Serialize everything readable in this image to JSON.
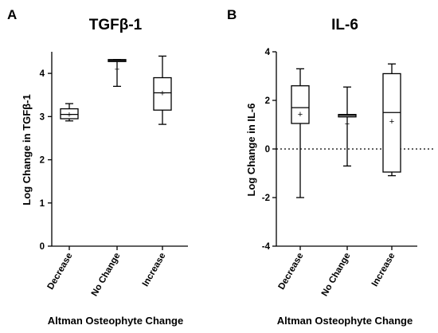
{
  "chart_data": [
    {
      "panel": "A",
      "type": "box",
      "title": "TGFβ-1",
      "ylabel": "Log Change in TGFβ-1",
      "xlabel": "Altman Osteophyte Change",
      "ylim": [
        0,
        4.5
      ],
      "yticks": [
        0,
        1,
        2,
        3,
        4
      ],
      "categories": [
        "Decrease",
        "No Change",
        "Increase"
      ],
      "series": [
        {
          "category": "Decrease",
          "min": 2.9,
          "q1": 2.95,
          "median": 3.05,
          "q3": 3.18,
          "max": 3.3,
          "mean": 3.05
        },
        {
          "category": "No Change",
          "min": 3.7,
          "q1": 4.28,
          "median": 4.3,
          "q3": 4.32,
          "max": 4.32,
          "mean": 4.1
        },
        {
          "category": "Increase",
          "min": 2.82,
          "q1": 3.15,
          "median": 3.55,
          "q3": 3.9,
          "max": 4.4,
          "mean": 3.55
        }
      ]
    },
    {
      "panel": "B",
      "type": "box",
      "title": "IL-6",
      "ylabel": "Log Change in IL-6",
      "xlabel": "Altman Osteophyte Change",
      "ylim": [
        -4,
        4
      ],
      "yticks": [
        -4,
        -2,
        0,
        2,
        4
      ],
      "reference_line": 0,
      "categories": [
        "Decrease",
        "No Change",
        "Increase"
      ],
      "series": [
        {
          "category": "Decrease",
          "min": -2.0,
          "q1": 1.05,
          "median": 1.7,
          "q3": 2.6,
          "max": 3.3,
          "mean": 1.45
        },
        {
          "category": "No Change",
          "min": -0.7,
          "q1": 1.32,
          "median": 1.38,
          "q3": 1.42,
          "max": 2.55,
          "mean": 1.05
        },
        {
          "category": "Increase",
          "min": -1.1,
          "q1": -0.95,
          "median": 1.5,
          "q3": 3.1,
          "max": 3.5,
          "mean": 1.15
        }
      ]
    }
  ]
}
